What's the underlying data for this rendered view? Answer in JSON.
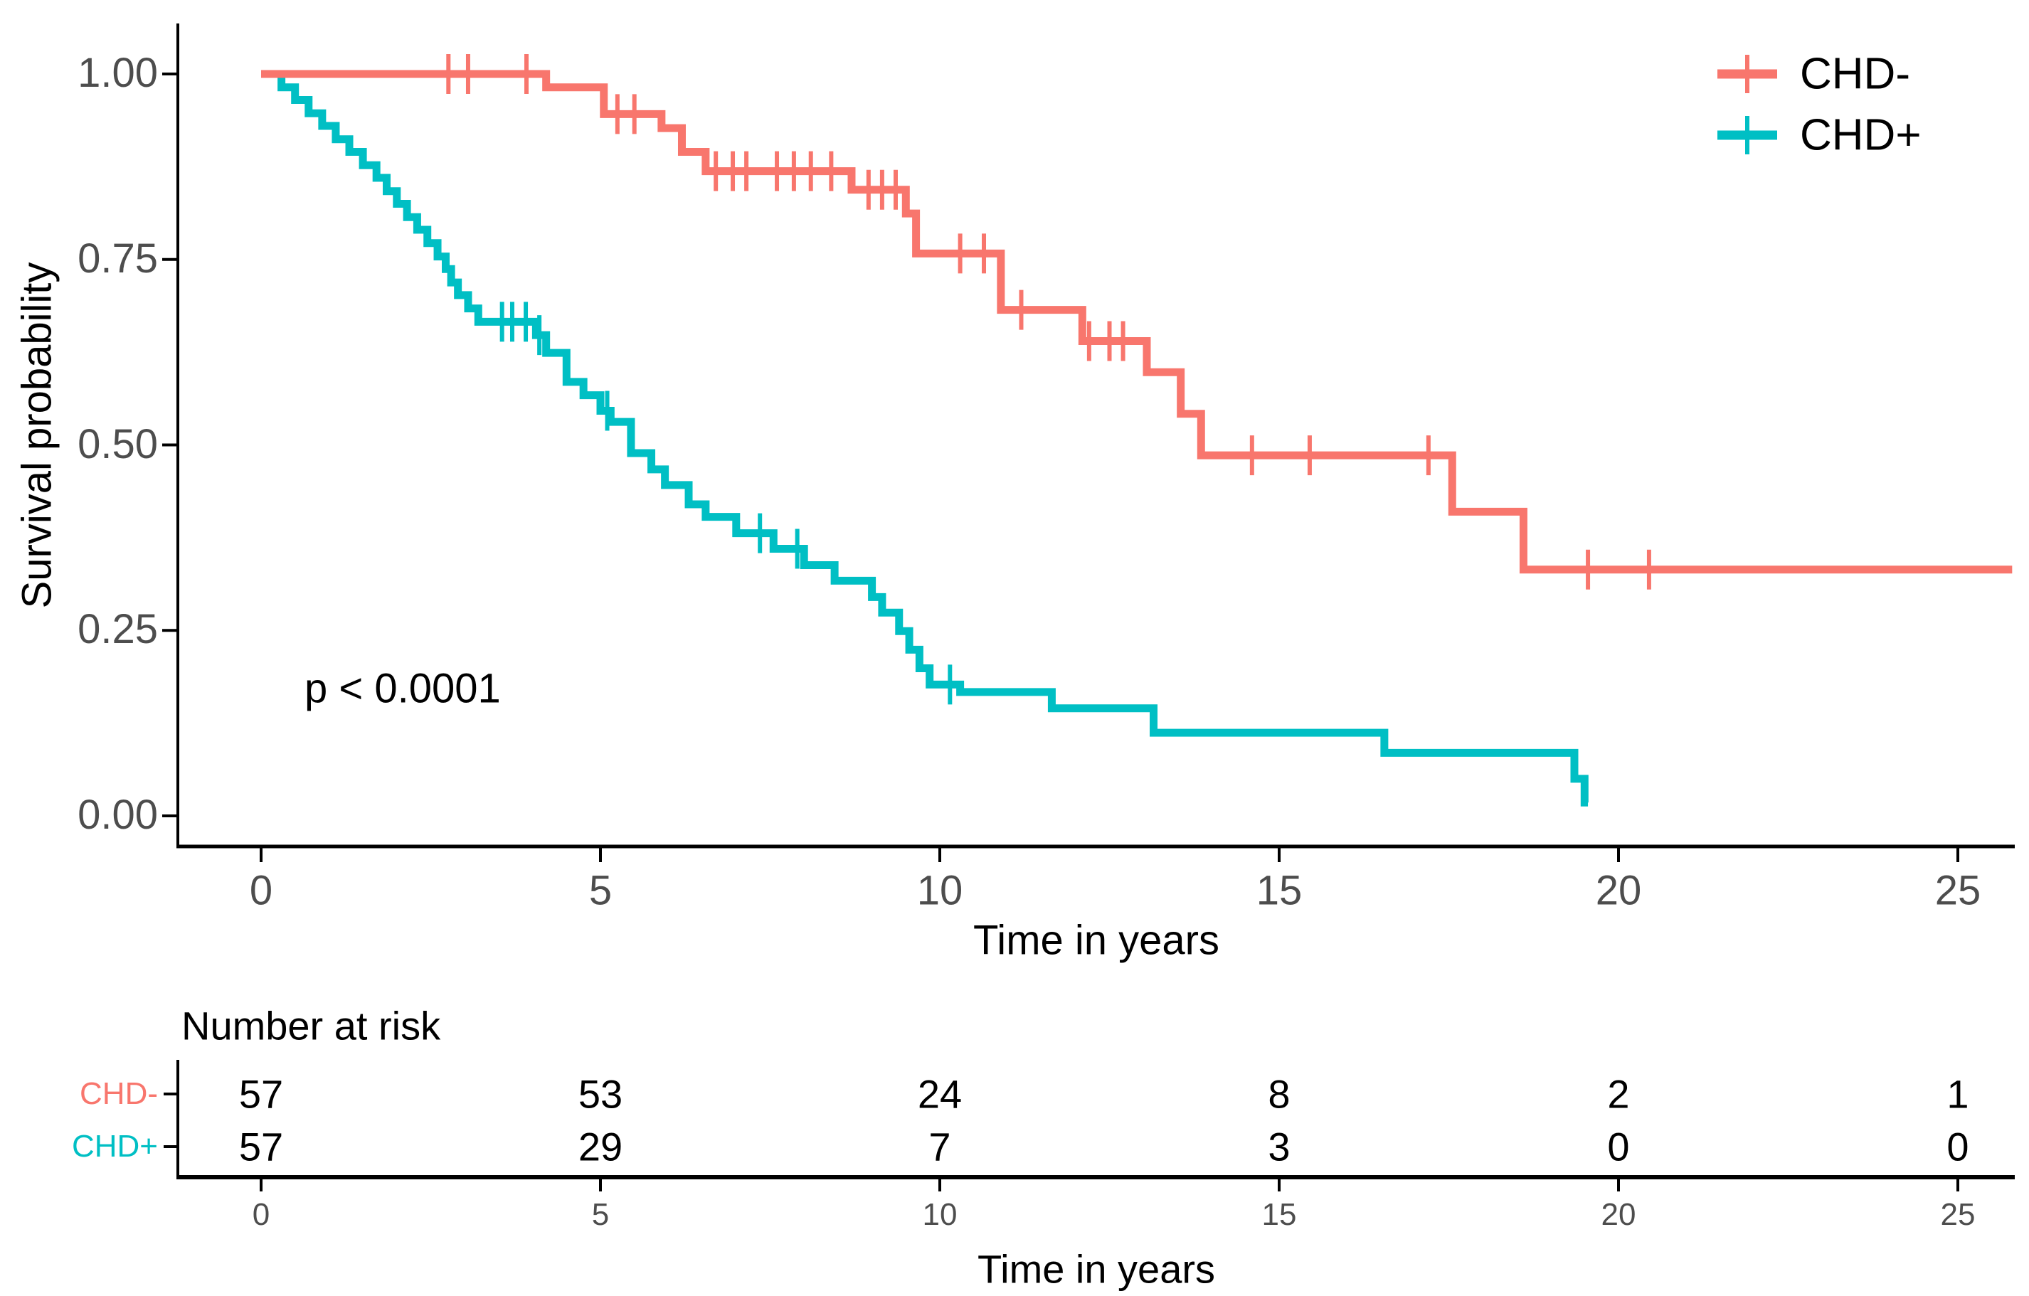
{
  "chart_data": {
    "type": "line",
    "subtype": "kaplan-meier-step",
    "title": "",
    "xlabel": "Time in years",
    "ylabel": "Survival probability",
    "p_value_annotation": "p < 0.0001",
    "xlim": [
      0,
      25.85
    ],
    "ylim": [
      0,
      1
    ],
    "x_ticks": [
      0,
      5,
      10,
      15,
      20,
      25
    ],
    "y_ticks": [
      {
        "value": 1.0,
        "label": "1.00"
      },
      {
        "value": 0.75,
        "label": "0.75"
      },
      {
        "value": 0.5,
        "label": "0.50"
      },
      {
        "value": 0.25,
        "label": "0.25"
      },
      {
        "value": 0.0,
        "label": "0.00"
      }
    ],
    "grid": false,
    "legend_position": "top-right",
    "axis_color": "#000000",
    "tick_label_color": "#4d4d4d",
    "text_color": "#000000",
    "series": [
      {
        "name": "CHD-",
        "color": "#F8766D",
        "steps": [
          [
            0,
            1.0
          ],
          [
            4.2,
            0.982
          ],
          [
            5.05,
            0.946
          ],
          [
            5.9,
            0.927
          ],
          [
            6.2,
            0.895
          ],
          [
            6.55,
            0.869
          ],
          [
            8.7,
            0.844
          ],
          [
            9.5,
            0.812
          ],
          [
            9.65,
            0.758
          ],
          [
            10.9,
            0.682
          ],
          [
            12.1,
            0.64
          ],
          [
            13.05,
            0.598
          ],
          [
            13.55,
            0.542
          ],
          [
            13.85,
            0.486
          ],
          [
            17.55,
            0.41
          ],
          [
            18.6,
            0.332
          ]
        ],
        "end_time": 25.8,
        "censor_times": [
          2.76,
          3.05,
          3.91,
          5.25,
          5.5,
          6.7,
          6.95,
          7.15,
          7.6,
          7.85,
          8.1,
          8.4,
          8.95,
          9.15,
          9.35,
          10.3,
          10.65,
          11.2,
          12.2,
          12.5,
          12.7,
          14.6,
          15.45,
          17.2,
          19.55,
          20.45
        ]
      },
      {
        "name": "CHD+",
        "color": "#00BFC4",
        "steps": [
          [
            0,
            1.0
          ],
          [
            0.3,
            0.982
          ],
          [
            0.5,
            0.965
          ],
          [
            0.7,
            0.947
          ],
          [
            0.9,
            0.93
          ],
          [
            1.1,
            0.912
          ],
          [
            1.3,
            0.895
          ],
          [
            1.5,
            0.877
          ],
          [
            1.7,
            0.86
          ],
          [
            1.85,
            0.842
          ],
          [
            2.0,
            0.825
          ],
          [
            2.15,
            0.807
          ],
          [
            2.3,
            0.79
          ],
          [
            2.45,
            0.772
          ],
          [
            2.6,
            0.754
          ],
          [
            2.72,
            0.737
          ],
          [
            2.8,
            0.719
          ],
          [
            2.9,
            0.702
          ],
          [
            3.05,
            0.684
          ],
          [
            3.2,
            0.666
          ],
          [
            4.05,
            0.648
          ],
          [
            4.2,
            0.624
          ],
          [
            4.5,
            0.585
          ],
          [
            4.75,
            0.567
          ],
          [
            5.0,
            0.546
          ],
          [
            5.15,
            0.531
          ],
          [
            5.45,
            0.489
          ],
          [
            5.75,
            0.467
          ],
          [
            5.95,
            0.446
          ],
          [
            6.3,
            0.42
          ],
          [
            6.55,
            0.403
          ],
          [
            7.0,
            0.381
          ],
          [
            7.55,
            0.36
          ],
          [
            8.0,
            0.338
          ],
          [
            8.45,
            0.317
          ],
          [
            9.0,
            0.295
          ],
          [
            9.15,
            0.274
          ],
          [
            9.4,
            0.249
          ],
          [
            9.55,
            0.224
          ],
          [
            9.7,
            0.199
          ],
          [
            9.85,
            0.177
          ],
          [
            10.3,
            0.167
          ],
          [
            11.65,
            0.145
          ],
          [
            13.15,
            0.112
          ],
          [
            16.55,
            0.085
          ],
          [
            19.35,
            0.05
          ],
          [
            19.5,
            0.018
          ]
        ],
        "end_time": 19.55,
        "censor_times": [
          3.55,
          3.7,
          3.9,
          4.1,
          5.1,
          7.35,
          7.9,
          10.15
        ]
      }
    ],
    "risk_table": {
      "title": "Number at risk",
      "xlabel": "Time in years",
      "time_points": [
        0,
        5,
        10,
        15,
        20,
        25
      ],
      "rows": [
        {
          "label": "CHD-",
          "color": "#F8766D",
          "counts": [
            57,
            53,
            24,
            8,
            2,
            1
          ]
        },
        {
          "label": "CHD+",
          "color": "#00BFC4",
          "counts": [
            57,
            29,
            7,
            3,
            0,
            0
          ]
        }
      ]
    }
  }
}
